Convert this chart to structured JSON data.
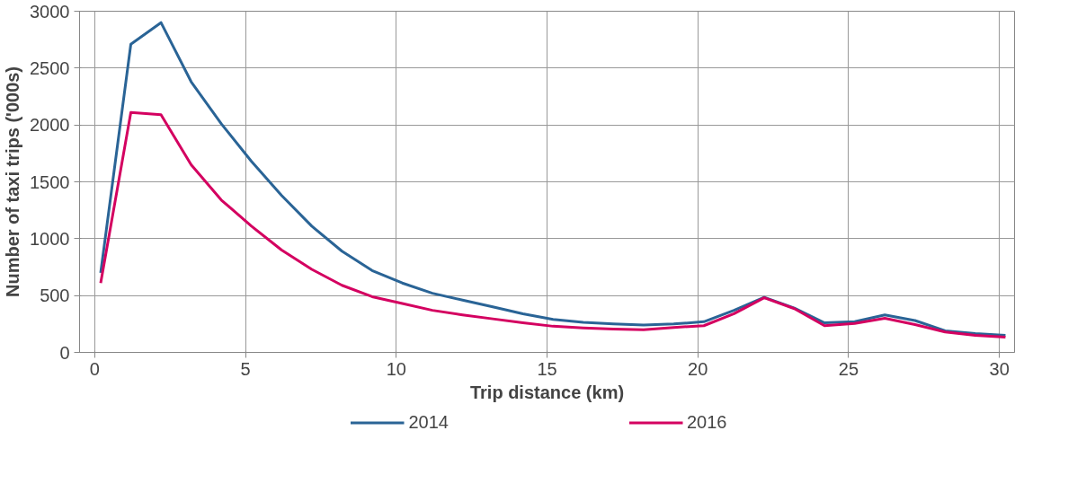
{
  "chart_data": {
    "type": "line",
    "xlabel": "Trip distance (km)",
    "ylabel": "Number of taxi trips ('000s)",
    "x": [
      0.2,
      1.2,
      2.2,
      3.2,
      4.2,
      5.2,
      6.2,
      7.2,
      8.2,
      9.2,
      10.2,
      11.2,
      12.2,
      13.2,
      14.2,
      15.2,
      16.2,
      17.2,
      18.2,
      19.2,
      20.2,
      21.2,
      22.2,
      23.2,
      24.2,
      25.2,
      26.2,
      27.2,
      28.2,
      29.2,
      30.2
    ],
    "series": [
      {
        "name": "2014",
        "color": "#2a6496",
        "values": [
          700,
          2710,
          2900,
          2380,
          2010,
          1680,
          1380,
          1110,
          890,
          720,
          610,
          520,
          460,
          400,
          340,
          290,
          265,
          250,
          240,
          250,
          270,
          370,
          485,
          390,
          260,
          270,
          330,
          280,
          190,
          165,
          150
        ]
      },
      {
        "name": "2016",
        "color": "#d40060",
        "values": [
          610,
          2110,
          2090,
          1650,
          1340,
          1110,
          900,
          730,
          590,
          490,
          430,
          370,
          330,
          295,
          260,
          230,
          215,
          205,
          200,
          220,
          235,
          340,
          480,
          385,
          235,
          255,
          300,
          245,
          180,
          150,
          135
        ]
      }
    ],
    "xlim": [
      -0.5,
      30.5
    ],
    "xticks": [
      0,
      5,
      10,
      15,
      20,
      25,
      30
    ],
    "ylim": [
      0,
      3000
    ],
    "yticks": [
      0,
      500,
      1000,
      1500,
      2000,
      2500,
      3000
    ],
    "grid": true,
    "legend": "bottom",
    "marker": "none",
    "line_style": "solid"
  }
}
